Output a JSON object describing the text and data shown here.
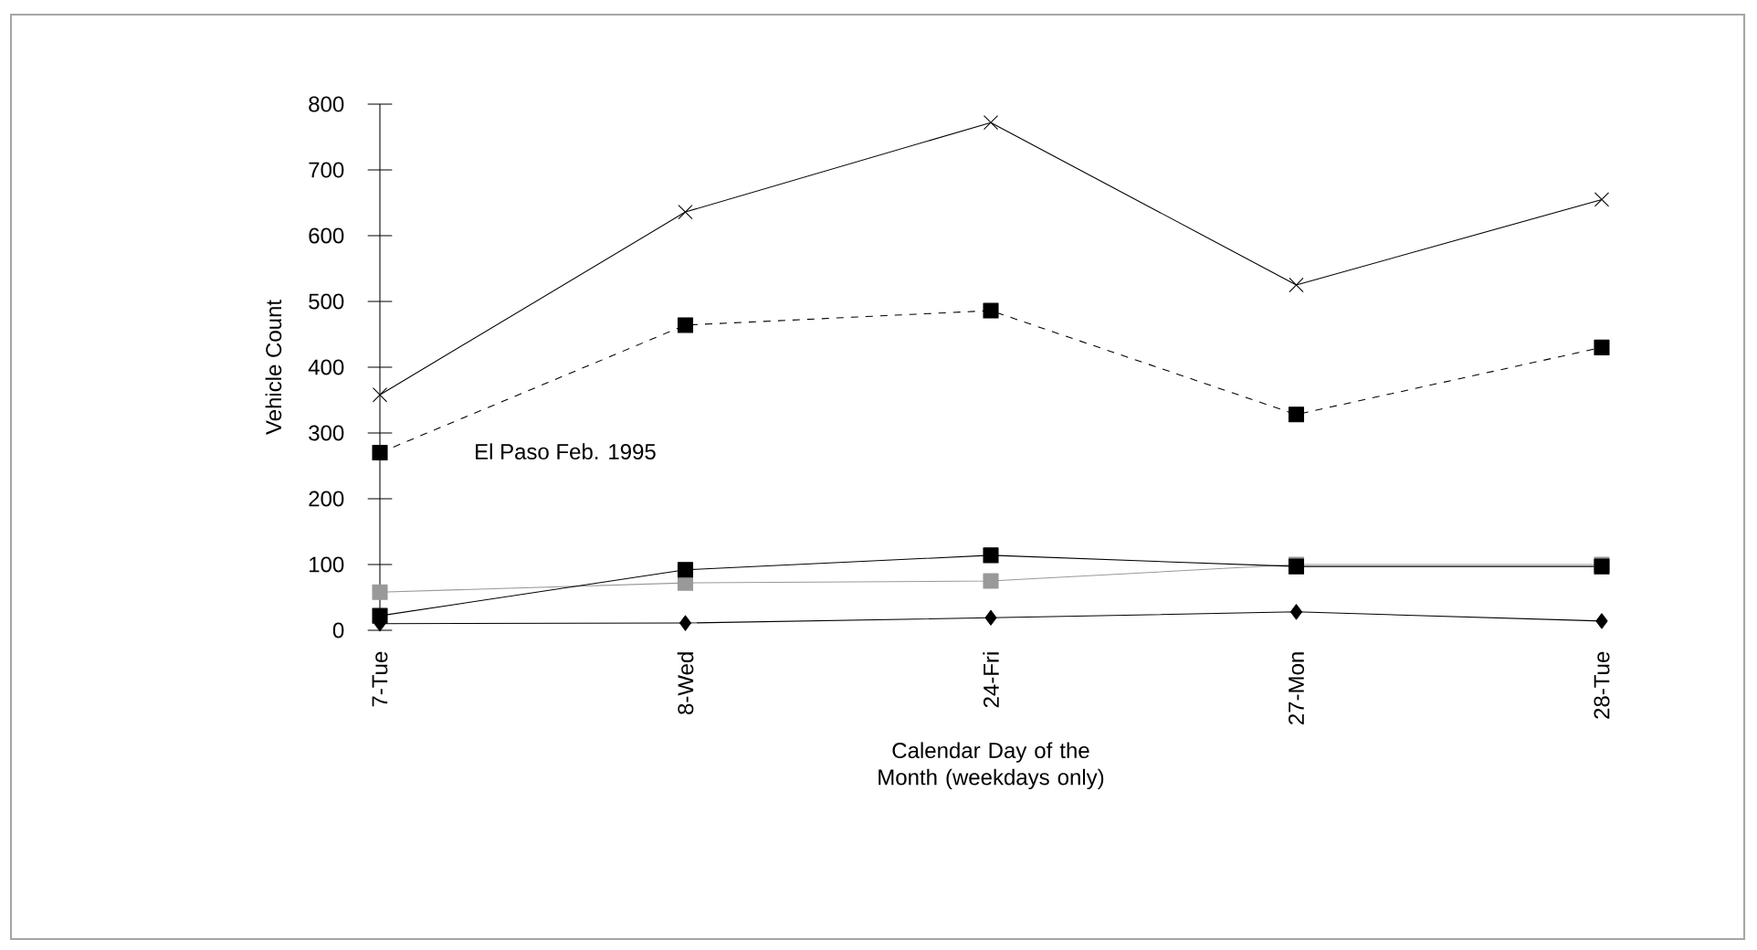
{
  "chart_data": {
    "type": "line",
    "categories": [
      "7-Tue",
      "8-Wed",
      "24-Fri",
      "27-Mon",
      "28-Tue"
    ],
    "series": [
      {
        "color": "#000000",
        "marker": "cross",
        "line_style": "solid",
        "values": [
          358,
          636,
          772,
          525,
          655
        ]
      },
      {
        "color": "#000000",
        "marker": "square",
        "line_style": "dashed",
        "values": [
          270,
          464,
          486,
          328,
          430
        ]
      },
      {
        "color": "#999999",
        "marker": "square",
        "line_style": "solid",
        "values": [
          58,
          72,
          75,
          100,
          100
        ]
      },
      {
        "color": "#000000",
        "marker": "square",
        "line_style": "solid",
        "values": [
          22,
          92,
          114,
          97,
          97
        ]
      },
      {
        "color": "#000000",
        "marker": "diamond",
        "line_style": "solid",
        "values": [
          10,
          11,
          19,
          28,
          14
        ]
      }
    ],
    "ylabel": "Vehicle Count",
    "xlabel": "Calendar Day of the Month (weekdays only)",
    "ylim": [
      0,
      800
    ],
    "yticks": [
      0,
      100,
      200,
      300,
      400,
      500,
      600,
      700,
      800
    ],
    "annotations": [
      "El Paso Feb. 1995"
    ]
  }
}
